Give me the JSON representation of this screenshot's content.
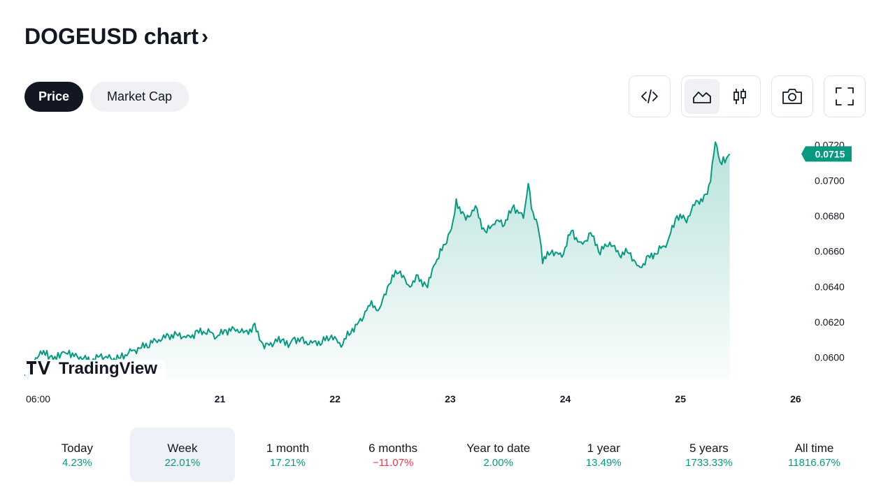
{
  "header": {
    "title": "DOGEUSD chart",
    "chevron": "›"
  },
  "tabs": [
    {
      "label": "Price",
      "active": true
    },
    {
      "label": "Market Cap",
      "active": false
    }
  ],
  "toolbar": {
    "embed_icon": "code-icon",
    "area_icon": "area-chart-icon",
    "candle_icon": "candlestick-icon",
    "snapshot_icon": "camera-icon",
    "fullscreen_icon": "fullscreen-icon"
  },
  "watermark": {
    "text": "TradingView"
  },
  "colors": {
    "line": "#089981",
    "accent": "#089981",
    "negative": "#f23645",
    "dark": "#131722"
  },
  "chart_data": {
    "type": "area",
    "symbol": "DOGEUSD",
    "last_price": "0.0715",
    "ylim": [
      0.0588,
      0.0727
    ],
    "y_ticks": [
      "0.0600",
      "0.0620",
      "0.0640",
      "0.0660",
      "0.0680",
      "0.0700",
      "0.0720"
    ],
    "x_ticks": [
      "06:00",
      "21",
      "22",
      "23",
      "24",
      "25",
      "26"
    ],
    "x_tick_positions_hours": [
      0,
      18,
      42,
      66,
      90,
      114,
      138
    ],
    "x_range_hours": [
      0,
      162.5
    ],
    "series": [
      {
        "x": [
          0,
          1,
          2,
          3,
          4,
          5,
          6,
          7,
          8,
          9,
          10,
          12,
          14,
          16,
          18,
          20,
          22,
          24,
          26,
          28,
          30,
          32,
          34,
          36,
          38,
          40,
          42,
          44,
          46,
          48,
          50,
          52,
          54,
          55,
          56,
          58,
          60,
          62,
          64,
          66,
          68,
          70,
          71,
          72,
          74,
          76,
          78,
          80,
          82,
          84,
          85,
          86,
          88,
          89,
          90,
          92,
          94,
          96,
          98,
          100,
          102,
          104,
          105,
          106,
          107,
          108,
          110,
          112,
          114,
          116,
          118,
          120,
          122,
          124,
          126,
          128,
          130,
          132,
          134,
          136,
          138,
          140,
          142,
          143,
          144,
          145,
          146,
          147
        ],
        "values": [
          0.059,
          0.059,
          0.0597,
          0.0601,
          0.0603,
          0.0601,
          0.06,
          0.0601,
          0.0603,
          0.0602,
          0.0601,
          0.06,
          0.0598,
          0.0601,
          0.0599,
          0.06,
          0.0603,
          0.0605,
          0.0608,
          0.061,
          0.0612,
          0.0613,
          0.0611,
          0.0614,
          0.0615,
          0.0612,
          0.0615,
          0.0616,
          0.0614,
          0.0617,
          0.0606,
          0.0609,
          0.061,
          0.0607,
          0.0611,
          0.0609,
          0.0608,
          0.0609,
          0.0612,
          0.0607,
          0.0615,
          0.062,
          0.0625,
          0.063,
          0.0627,
          0.0642,
          0.065,
          0.064,
          0.0645,
          0.064,
          0.0649,
          0.0655,
          0.0667,
          0.0673,
          0.0688,
          0.0678,
          0.0685,
          0.067,
          0.0677,
          0.0676,
          0.0685,
          0.0679,
          0.0698,
          0.068,
          0.0675,
          0.0655,
          0.066,
          0.0657,
          0.0672,
          0.0663,
          0.067,
          0.066,
          0.0665,
          0.0658,
          0.066,
          0.065,
          0.0656,
          0.066,
          0.0665,
          0.068,
          0.0678,
          0.0688,
          0.069,
          0.07,
          0.0722,
          0.071,
          0.0712,
          0.0715
        ]
      }
    ]
  },
  "periods": [
    {
      "label": "Today",
      "value": "4.23%",
      "trend": "pos",
      "selected": false
    },
    {
      "label": "Week",
      "value": "22.01%",
      "trend": "pos",
      "selected": true
    },
    {
      "label": "1 month",
      "value": "17.21%",
      "trend": "pos",
      "selected": false
    },
    {
      "label": "6 months",
      "value": "−11.07%",
      "trend": "neg",
      "selected": false
    },
    {
      "label": "Year to date",
      "value": "2.00%",
      "trend": "pos",
      "selected": false
    },
    {
      "label": "1 year",
      "value": "13.49%",
      "trend": "pos",
      "selected": false
    },
    {
      "label": "5 years",
      "value": "1733.33%",
      "trend": "pos",
      "selected": false
    },
    {
      "label": "All time",
      "value": "11816.67%",
      "trend": "pos",
      "selected": false
    }
  ]
}
